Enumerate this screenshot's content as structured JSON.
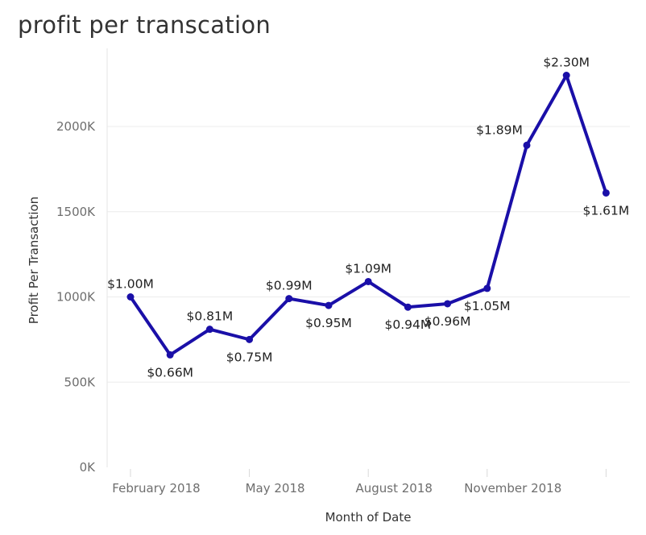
{
  "chart_data": {
    "type": "line",
    "title": "profit per transcation",
    "xlabel": "Month of Date",
    "ylabel": "Profit Per Transaction",
    "ylim": [
      0,
      2400000
    ],
    "grid": true,
    "y_ticks": [
      {
        "value": 0,
        "label": "0K"
      },
      {
        "value": 500000,
        "label": "500K"
      },
      {
        "value": 1000000,
        "label": "1000K"
      },
      {
        "value": 1500000,
        "label": "1500K"
      },
      {
        "value": 2000000,
        "label": "2000K"
      }
    ],
    "x_tick_labels": [
      {
        "index": 0,
        "label": "February 2018"
      },
      {
        "index": 3,
        "label": "May 2018"
      },
      {
        "index": 6,
        "label": "August 2018"
      },
      {
        "index": 9,
        "label": "November 2018"
      }
    ],
    "categories": [
      "2018-02",
      "2018-03",
      "2018-04",
      "2018-05",
      "2018-06",
      "2018-07",
      "2018-08",
      "2018-09",
      "2018-10",
      "2018-11",
      "2018-12",
      "2019-01",
      "2019-02"
    ],
    "series": [
      {
        "color": "#1a0fa8",
        "values": [
          1000000,
          660000,
          810000,
          750000,
          990000,
          950000,
          1090000,
          940000,
          960000,
          1050000,
          1890000,
          2300000,
          1610000
        ],
        "labels": [
          "$1.00M",
          "$0.66M",
          "$0.81M",
          "$0.75M",
          "$0.99M",
          "$0.95M",
          "$1.09M",
          "$0.94M",
          "$0.96M",
          "$1.05M",
          "$1.89M",
          "$2.30M",
          "$1.61M"
        ],
        "label_positions": [
          "above",
          "below",
          "above",
          "below",
          "above",
          "below",
          "above",
          "below",
          "below",
          "below",
          "above-left",
          "above",
          "below"
        ]
      }
    ]
  }
}
